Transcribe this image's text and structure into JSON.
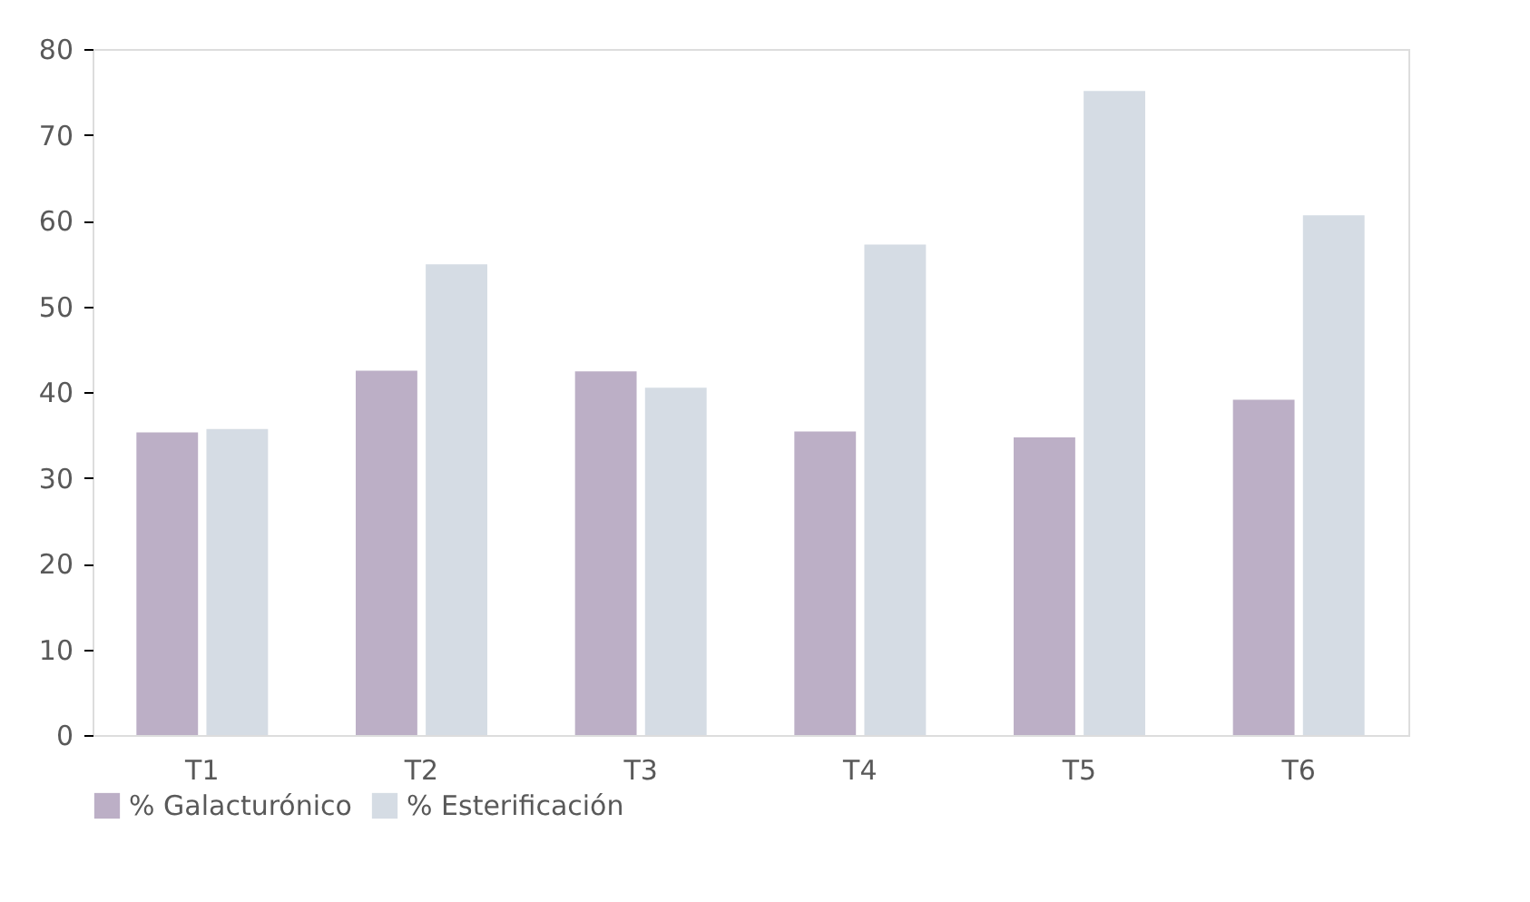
{
  "chart_data": {
    "type": "bar",
    "categories": [
      "T1",
      "T2",
      "T3",
      "T4",
      "T5",
      "T6"
    ],
    "series": [
      {
        "name": "% Galacturónico",
        "color": "#bcafc6",
        "values": [
          35.3,
          42.5,
          42.4,
          35.4,
          34.7,
          39.1
        ]
      },
      {
        "name": "% Esterificación",
        "color": "#d5dce4",
        "values": [
          35.7,
          54.9,
          40.5,
          57.2,
          75.1,
          60.6
        ]
      }
    ],
    "ylim": [
      0,
      80
    ],
    "yticks": [
      0,
      10,
      20,
      30,
      40,
      50,
      60,
      70,
      80
    ],
    "grid": false,
    "legend": "bottom"
  }
}
